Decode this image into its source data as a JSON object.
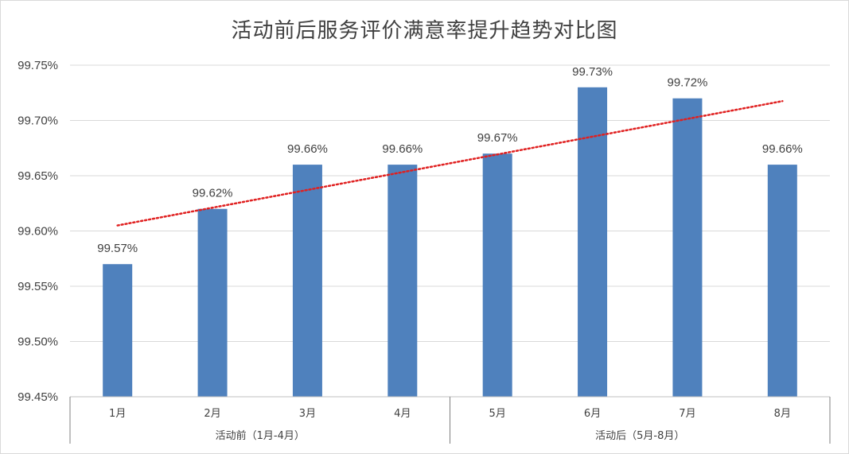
{
  "chart_data": {
    "type": "bar",
    "title": "活动前后服务评价满意率提升趋势对比图",
    "categories": [
      "1月",
      "2月",
      "3月",
      "4月",
      "5月",
      "6月",
      "7月",
      "8月"
    ],
    "values": [
      99.57,
      99.62,
      99.66,
      99.66,
      99.67,
      99.73,
      99.72,
      99.66
    ],
    "data_labels": [
      "99.57%",
      "99.62%",
      "99.66%",
      "99.66%",
      "99.67%",
      "99.73%",
      "99.72%",
      "99.66%"
    ],
    "groups": [
      {
        "label": "活动前（1月-4月）",
        "span": 4
      },
      {
        "label": "活动后（5月-8月）",
        "span": 4
      }
    ],
    "y_ticks": [
      "99.45%",
      "99.50%",
      "99.55%",
      "99.60%",
      "99.65%",
      "99.70%",
      "99.75%"
    ],
    "ylim": [
      99.45,
      99.75
    ],
    "y_unit": "%",
    "grid": true,
    "trendline": {
      "type": "linear",
      "style": "dotted",
      "color": "#e02020"
    },
    "bar_color": "#4f81bd"
  }
}
